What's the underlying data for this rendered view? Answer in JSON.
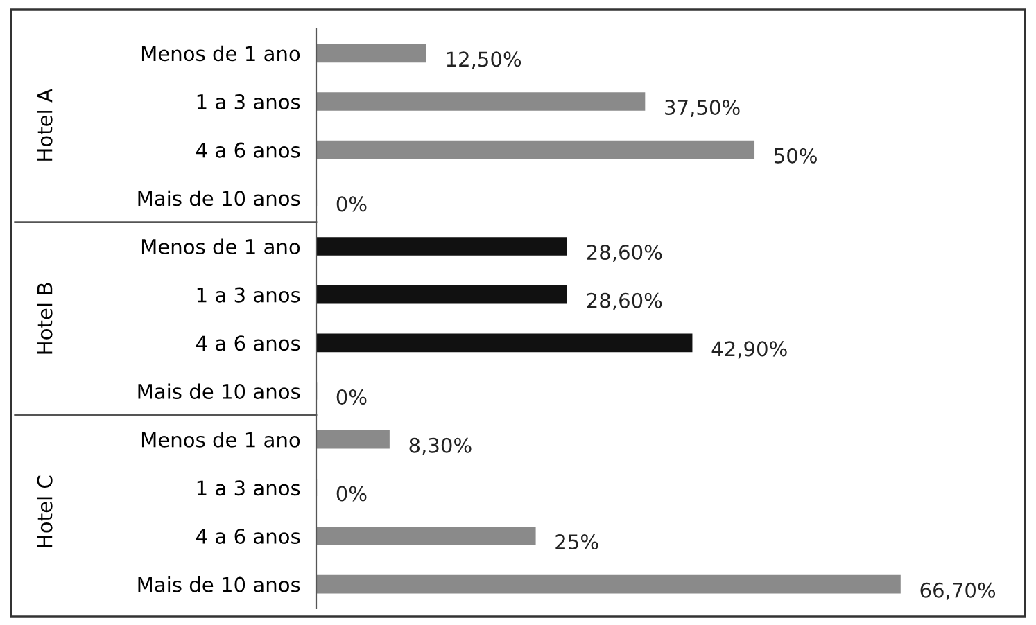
{
  "chart_data": {
    "type": "bar",
    "orientation": "horizontal",
    "categories": [
      "Menos de 1 ano",
      "1 a 3 anos",
      "4 a 6 anos",
      "Mais de 10 anos",
      "Menos de 1 ano",
      "1 a 3 anos",
      "4 a 6 anos",
      "Mais de 10 anos",
      "Menos de 1 ano",
      "1 a 3 anos",
      "4 a 6 anos",
      "Mais de 10 anos"
    ],
    "series": [
      {
        "color": "#8a8a8a",
        "values": [
          12.5,
          37.5,
          50,
          0,
          null,
          null,
          null,
          null,
          null,
          null,
          null,
          null
        ],
        "value_labels": [
          "12,50%",
          "37,50%",
          "50%",
          "0%",
          null,
          null,
          null,
          null,
          null,
          null,
          null,
          null
        ]
      },
      {
        "color": "#111111",
        "values": [
          null,
          null,
          null,
          null,
          28.6,
          28.6,
          42.9,
          0,
          null,
          null,
          null,
          null
        ],
        "value_labels": [
          null,
          null,
          null,
          null,
          "28,60%",
          "28,60%",
          "42,90%",
          "0%",
          null,
          null,
          null,
          null
        ]
      },
      {
        "color": "#8a8a8a",
        "values": [
          null,
          null,
          null,
          null,
          null,
          null,
          null,
          null,
          8.3,
          0,
          25,
          66.7
        ],
        "value_labels": [
          null,
          null,
          null,
          null,
          null,
          null,
          null,
          null,
          "8,30%",
          "0%",
          "25%",
          "66,70%"
        ]
      }
    ],
    "annotations": [
      "Hotel A",
      "Hotel B",
      "Hotel C"
    ],
    "grid": false
  }
}
